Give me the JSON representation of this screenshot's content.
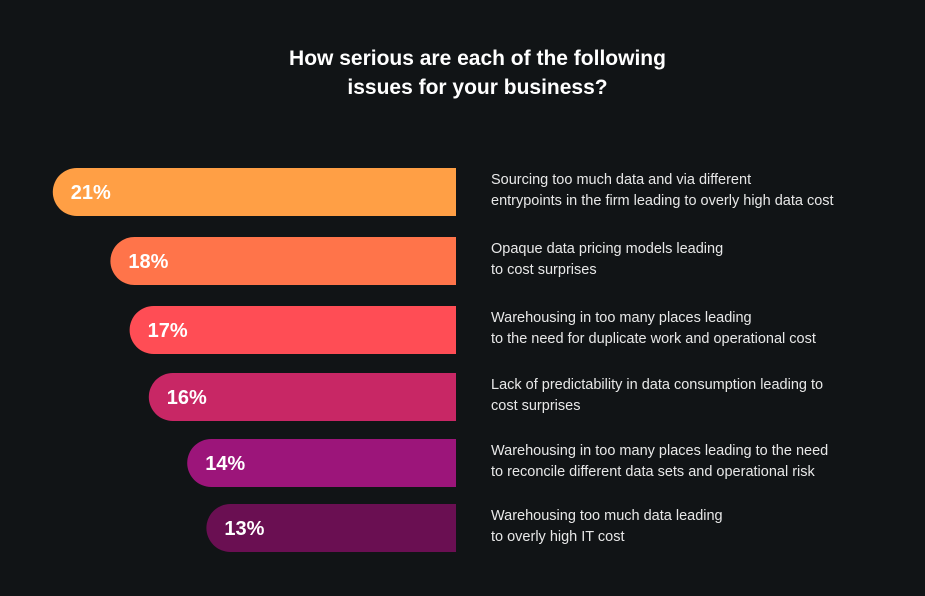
{
  "chart_data": {
    "type": "bar",
    "orientation": "horizontal",
    "title_lines": [
      "How serious are each of the following",
      "issues for your business?"
    ],
    "categories": [
      [
        "Sourcing too much data and via different",
        "entrypoints in the firm leading to overly high data cost"
      ],
      [
        "Opaque data pricing models leading",
        "to cost surprises"
      ],
      [
        "Warehousing in too many places leading",
        "to the need for duplicate work and operational cost"
      ],
      [
        "Lack of predictability in data consumption leading to",
        "cost surprises"
      ],
      [
        "Warehousing in too many places leading to the need",
        "to reconcile different data sets and operational risk"
      ],
      [
        "Warehousing too much data leading",
        "to overly high IT cost"
      ]
    ],
    "values": [
      21,
      18,
      17,
      16,
      14,
      13
    ],
    "value_labels": [
      "21%",
      "18%",
      "17%",
      "16%",
      "14%",
      "13%"
    ],
    "colors": [
      "#ff9f45",
      "#ff744a",
      "#ff4d55",
      "#c82765",
      "#9c157a",
      "#6a0f52"
    ],
    "legend": "none",
    "grid": false
  }
}
